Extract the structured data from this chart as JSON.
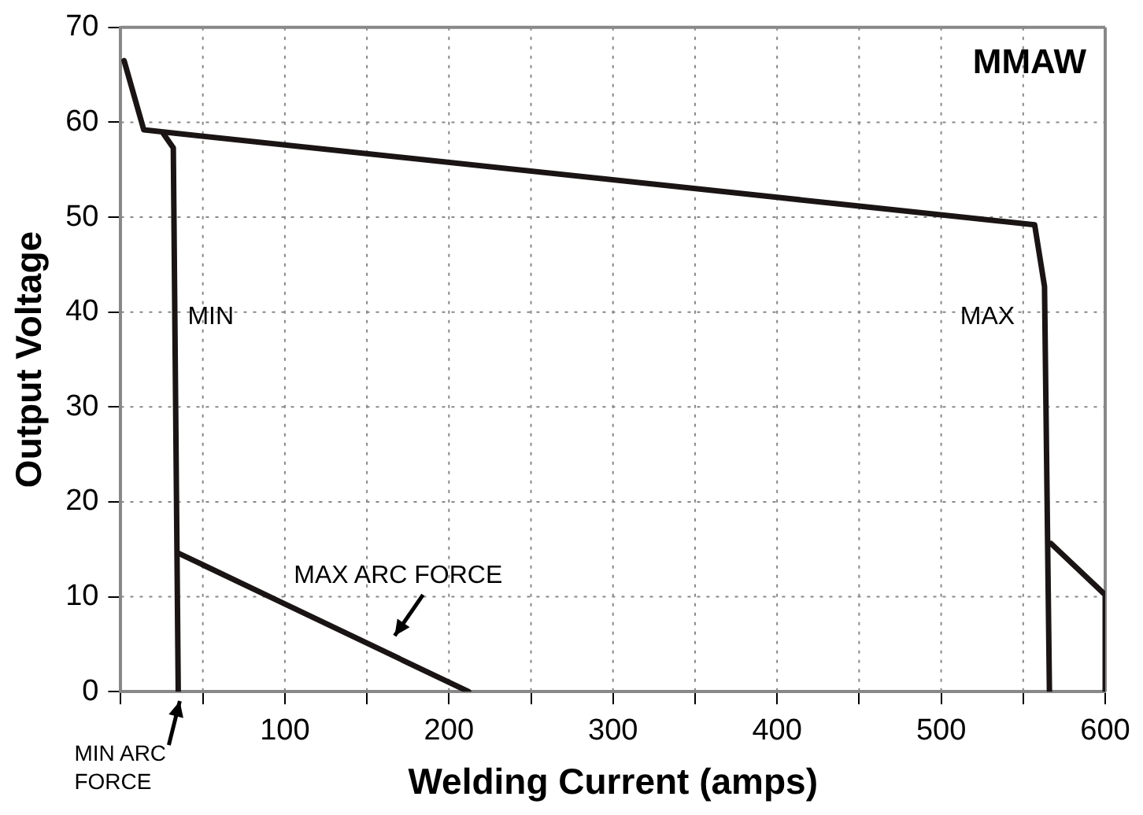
{
  "chart_data": {
    "type": "line",
    "xlabel": "Welding Current (amps)",
    "ylabel": "Output Voltage",
    "series": [
      {
        "color": "#1a1414",
        "x": [
          2,
          14,
          557,
          563,
          566
        ],
        "values": [
          66.5,
          59.2,
          49.2,
          42.7,
          0
        ]
      },
      {
        "color": "#1a1414",
        "x": [
          26,
          32,
          35
        ],
        "values": [
          58.8,
          57.3,
          0
        ]
      },
      {
        "color": "#1a1414",
        "x": [
          35,
          212
        ],
        "values": [
          14.6,
          0
        ]
      },
      {
        "color": "#1a1414",
        "x": [
          567,
          600,
          600
        ],
        "values": [
          15.6,
          10.2,
          0
        ]
      }
    ],
    "xlim": [
      0,
      600
    ],
    "xticks": [
      {
        "value": 0,
        "label": null
      },
      {
        "value": 50,
        "label": null
      },
      100,
      {
        "value": 150,
        "label": null
      },
      200,
      {
        "value": 250,
        "label": null
      },
      300,
      {
        "value": 350,
        "label": null
      },
      400,
      {
        "value": 450,
        "label": null
      },
      500,
      {
        "value": 550,
        "label": null
      },
      600
    ],
    "ylim": [
      0,
      70
    ],
    "yticks": [
      0,
      10,
      20,
      30,
      40,
      50,
      60,
      70
    ],
    "grid": true,
    "legend": false,
    "marker": "none",
    "line_style": "solid",
    "annotations": [
      "MMAW",
      {
        "text": "MIN",
        "x": 35,
        "y": 39.5
      },
      {
        "text": "MAX",
        "x": 566,
        "y": 39.5
      },
      {
        "text": "MAX ARC FORCE",
        "x": 165,
        "y": 3.9
      },
      {
        "text": "MIN ARC FORCE",
        "x": 35,
        "y": 0
      }
    ]
  }
}
